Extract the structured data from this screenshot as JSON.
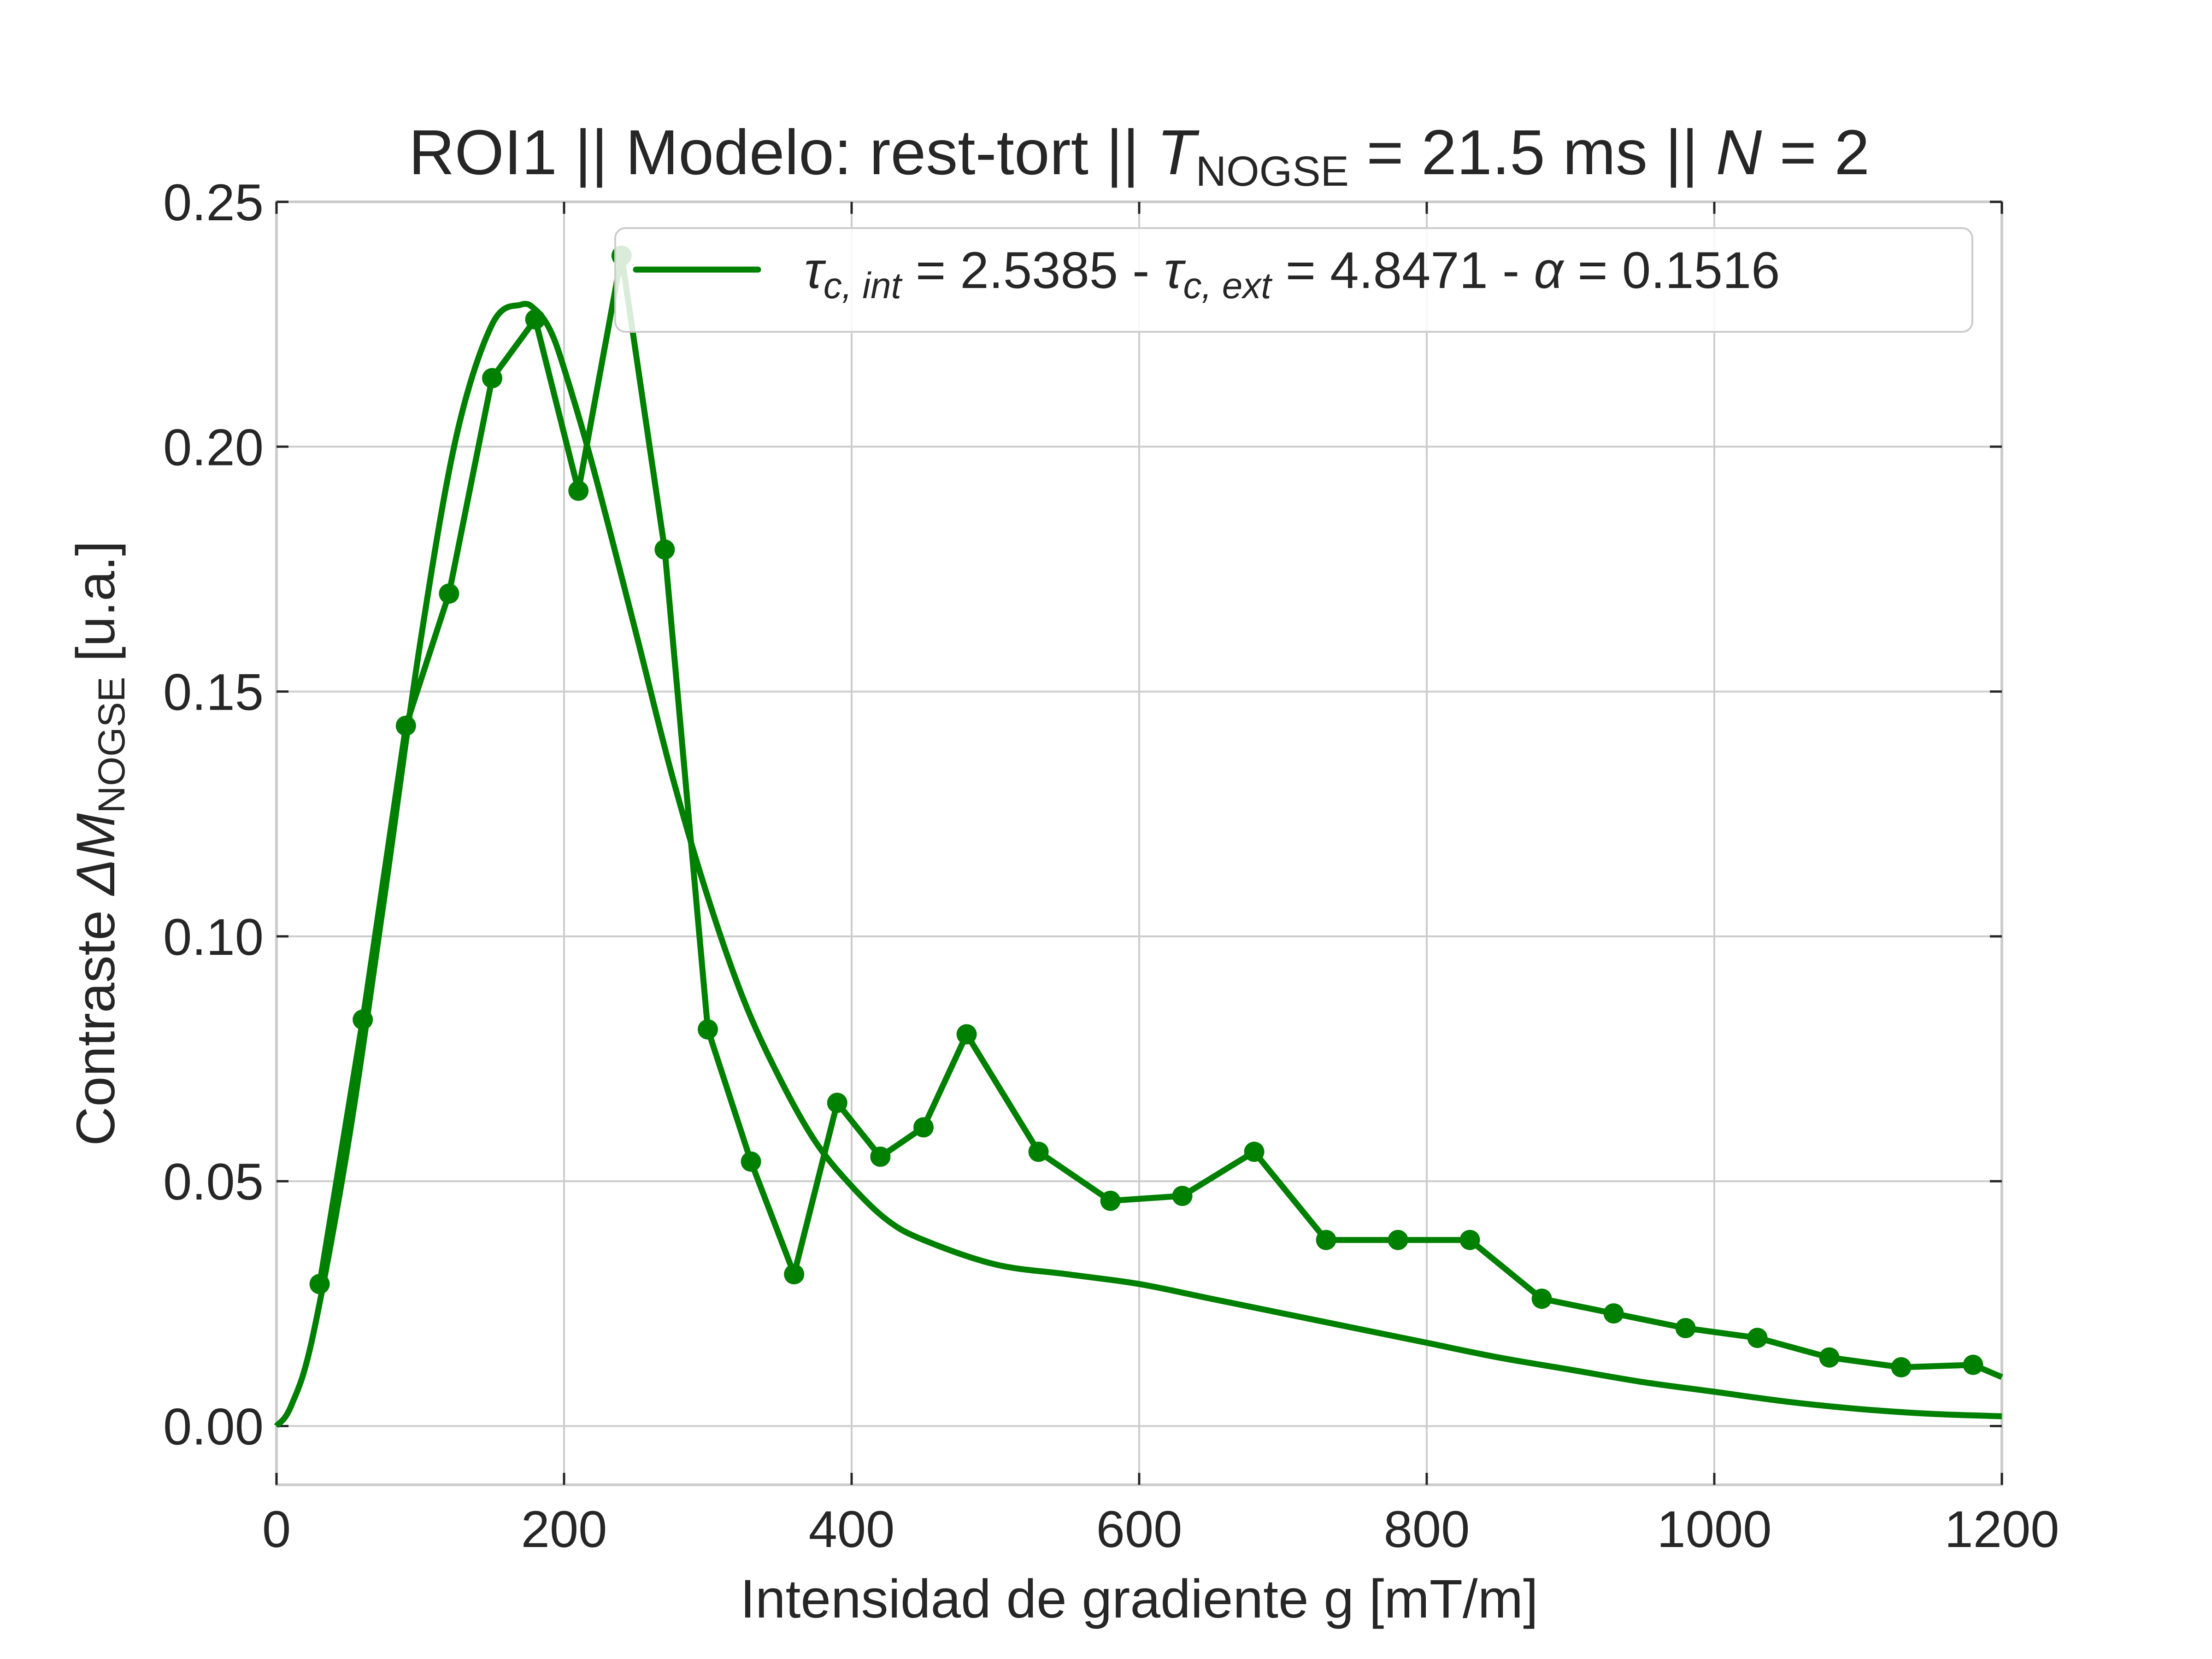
{
  "title": {
    "prefix": "ROI1 || Modelo: rest-tort || ",
    "t_symbol": "T",
    "t_sub": "NOGSE",
    "middle": " = 21.5 ms  ||  ",
    "n_symbol": "N",
    "suffix": " = 2"
  },
  "xlabel": "Intensidad de gradiente g [mT/m]",
  "ylabel": {
    "prefix": "Contraste ",
    "symbol": "ΔM",
    "sub": "NOGSE",
    "suffix": " [u.a.]"
  },
  "legend": {
    "t1": "τ",
    "s1": "c, int",
    "v1": " = 2.5385 - ",
    "t2": "τ",
    "s2": "c, ext",
    "v2": " = 4.8471 - ",
    "t3": "α",
    "v3": " = 0.1516"
  },
  "colors": {
    "series": "#008000",
    "grid": "#cccccc",
    "axes": "#cccccc",
    "text": "#262626",
    "legend_border": "#cccccc"
  },
  "chart_data": {
    "type": "line",
    "xlim": [
      0,
      1200
    ],
    "ylim": [
      -0.012,
      0.25
    ],
    "x_ticks": [
      0,
      200,
      400,
      600,
      800,
      1000,
      1200
    ],
    "x_tick_labels": [
      "0",
      "200",
      "400",
      "600",
      "800",
      "1000",
      "1200"
    ],
    "y_ticks": [
      0.0,
      0.05,
      0.1,
      0.15,
      0.2,
      0.25
    ],
    "y_tick_labels": [
      "0.00",
      "0.05",
      "0.10",
      "0.15",
      "0.20",
      "0.25"
    ],
    "grid": true,
    "legend_position": "top-right",
    "series": [
      {
        "kind": "measured",
        "markers": true,
        "x": [
          30,
          60,
          90,
          120,
          150,
          180,
          210,
          240,
          270,
          300,
          330,
          360,
          390,
          420,
          450,
          480,
          530,
          580,
          630,
          680,
          730,
          780,
          830,
          880,
          930,
          980,
          1030,
          1080,
          1130,
          1180
        ],
        "y": [
          0.029,
          0.083,
          0.143,
          0.17,
          0.214,
          0.226,
          0.191,
          0.239,
          0.179,
          0.081,
          0.054,
          0.031,
          0.066,
          0.055,
          0.061,
          0.08,
          0.056,
          0.046,
          0.047,
          0.056,
          0.038,
          0.038,
          0.038,
          0.026,
          0.023,
          0.02,
          0.018,
          0.014,
          0.012,
          0.0125
        ],
        "tail": [
          1200,
          0.01
        ]
      },
      {
        "name": "τc, int = 2.5385 - τc, ext = 4.8471 - α = 0.1516",
        "kind": "fit",
        "markers": false,
        "x": [
          0,
          10,
          25,
          50,
          75,
          100,
          125,
          150,
          170,
          180,
          190,
          200,
          220,
          250,
          275,
          300,
          325,
          350,
          375,
          400,
          425,
          450,
          500,
          550,
          600,
          650,
          700,
          750,
          800,
          850,
          900,
          950,
          1000,
          1050,
          1100,
          1150,
          1200
        ],
        "y": [
          0.0,
          0.004,
          0.018,
          0.058,
          0.108,
          0.16,
          0.202,
          0.225,
          0.229,
          0.228,
          0.224,
          0.216,
          0.196,
          0.162,
          0.133,
          0.108,
          0.087,
          0.071,
          0.058,
          0.049,
          0.042,
          0.038,
          0.033,
          0.031,
          0.029,
          0.026,
          0.023,
          0.02,
          0.017,
          0.014,
          0.0115,
          0.009,
          0.007,
          0.005,
          0.0035,
          0.0025,
          0.002
        ]
      }
    ]
  }
}
